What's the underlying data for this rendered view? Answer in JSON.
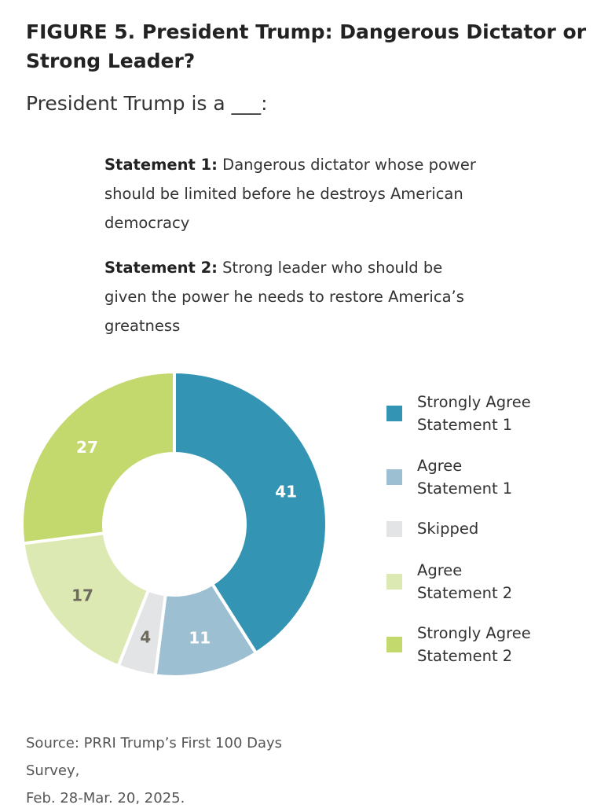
{
  "header": {
    "title": "FIGURE 5.  President Trump: Dangerous Dictator or Strong Leader?",
    "subtitle": "President Trump is a ___:"
  },
  "statements": [
    {
      "label": "Statement 1:",
      "text": " Dangerous dictator whose power should be limited before he destroys American democracy"
    },
    {
      "label": "Statement 2:",
      "text": " Strong leader who should be given the power he needs to restore America’s greatness"
    }
  ],
  "chart_data": {
    "type": "pie",
    "donut": true,
    "categories": [
      "Strongly Agree Statement 1",
      "Agree Statement 1",
      "Skipped",
      "Agree Statement 2",
      "Strongly Agree Statement 2"
    ],
    "values": [
      41,
      11,
      4,
      17,
      27
    ],
    "labels": [
      "41",
      "11",
      "4",
      "17",
      "27"
    ],
    "colors": [
      "#3394b3",
      "#9dbfd2",
      "#e3e4e6",
      "#dde9b3",
      "#c3d96d"
    ],
    "label_colors": [
      "#ffffff",
      "#ffffff",
      "#6e6a5e",
      "#6e6a5e",
      "#ffffff"
    ],
    "legend_position": "right",
    "legend": [
      {
        "line1": "Strongly Agree",
        "line2": "Statement 1",
        "color": "#3394b3"
      },
      {
        "line1": "Agree",
        "line2": "Statement 1",
        "color": "#9dbfd2"
      },
      {
        "line1": "Skipped",
        "line2": "",
        "color": "#e3e4e6"
      },
      {
        "line1": "Agree",
        "line2": "Statement 2",
        "color": "#dde9b3"
      },
      {
        "line1": "Strongly Agree",
        "line2": "Statement 2",
        "color": "#c3d96d"
      }
    ]
  },
  "source": {
    "line1": "Source: PRRI Trump’s First 100 Days Survey,",
    "line2": "Feb. 28-Mar. 20, 2025."
  }
}
